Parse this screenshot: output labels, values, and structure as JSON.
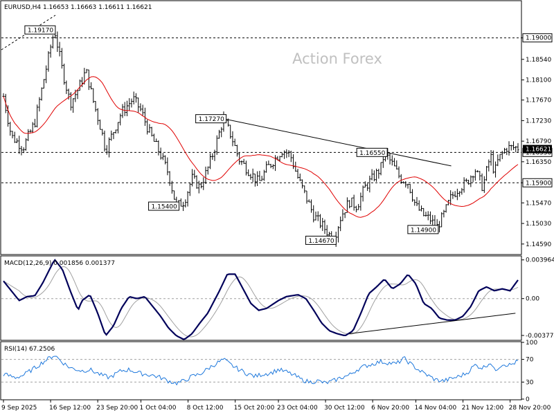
{
  "chart_data": [
    {
      "type": "ohlc",
      "pane": "price",
      "header": "EURUSD,H4  1.16653 1.16663 1.16611 1.16621",
      "watermark": "Action Forex",
      "ylim": [
        1.1438,
        1.1978
      ],
      "y_ticks": [
        1.1459,
        1.1503,
        1.1547,
        1.159,
        1.1635,
        1.1679,
        1.1723,
        1.1767,
        1.181,
        1.1854,
        1.19
      ],
      "y_tick_labels": [
        "1.14590",
        "1.15030",
        "1.15470",
        "1.15900",
        "1.16350",
        "1.16790",
        "1.17230",
        "1.17670",
        "1.18100",
        "1.18540",
        "1.19000"
      ],
      "horizontal_levels": [
        {
          "value": 1.19,
          "label": "1.19000",
          "style": "dashed",
          "highlight": true
        },
        {
          "value": 1.1655,
          "label": "1.16550",
          "style": "dashed",
          "highlight": true
        },
        {
          "value": 1.159,
          "label": "1.15900",
          "style": "dashed",
          "highlight": true
        }
      ],
      "current_price": {
        "value": 1.16621,
        "label": "1.16621"
      },
      "annotations": [
        {
          "label": "1.19170",
          "value": 1.1917,
          "date_index": 12.5
        },
        {
          "label": "1.17270",
          "value": 1.1727,
          "date_index": 56
        },
        {
          "label": "1.15400",
          "value": 1.154,
          "date_index": 44
        },
        {
          "label": "1.14670",
          "value": 1.1467,
          "date_index": 84
        },
        {
          "label": "1.16550",
          "value": 1.1655,
          "date_index": 97
        },
        {
          "label": "1.14900",
          "value": 1.149,
          "date_index": 110
        }
      ],
      "trendline": {
        "from": {
          "date_index": 56,
          "value": 1.1727
        },
        "to": {
          "date_index": 114,
          "value": 1.1626
        }
      },
      "moving_average_color": "#ff0000",
      "bar_color": "#000000",
      "key_points": [
        [
          0,
          1.1775
        ],
        [
          2,
          1.169
        ],
        [
          5,
          1.1665
        ],
        [
          8,
          1.172
        ],
        [
          10,
          1.18
        ],
        [
          12,
          1.188
        ],
        [
          13,
          1.1917
        ],
        [
          15,
          1.183
        ],
        [
          17,
          1.176
        ],
        [
          19,
          1.179
        ],
        [
          21,
          1.183
        ],
        [
          23,
          1.176
        ],
        [
          25,
          1.17
        ],
        [
          26,
          1.166
        ],
        [
          28,
          1.17
        ],
        [
          30,
          1.174
        ],
        [
          33,
          1.177
        ],
        [
          35,
          1.1745
        ],
        [
          37,
          1.17
        ],
        [
          40,
          1.165
        ],
        [
          42,
          1.161
        ],
        [
          44,
          1.154
        ],
        [
          46,
          1.155
        ],
        [
          48,
          1.16
        ],
        [
          50,
          1.158
        ],
        [
          52,
          1.162
        ],
        [
          54,
          1.167
        ],
        [
          56,
          1.1727
        ],
        [
          58,
          1.169
        ],
        [
          60,
          1.164
        ],
        [
          63,
          1.161
        ],
        [
          65,
          1.159
        ],
        [
          67,
          1.162
        ],
        [
          69,
          1.164
        ],
        [
          71,
          1.166
        ],
        [
          73,
          1.165
        ],
        [
          75,
          1.16
        ],
        [
          77,
          1.156
        ],
        [
          79,
          1.152
        ],
        [
          82,
          1.149
        ],
        [
          84,
          1.1467
        ],
        [
          86,
          1.152
        ],
        [
          88,
          1.155
        ],
        [
          90,
          1.154
        ],
        [
          92,
          1.158
        ],
        [
          94,
          1.16
        ],
        [
          96,
          1.162
        ],
        [
          97,
          1.1655
        ],
        [
          99,
          1.163
        ],
        [
          101,
          1.16
        ],
        [
          103,
          1.159
        ],
        [
          105,
          1.154
        ],
        [
          107,
          1.152
        ],
        [
          109,
          1.151
        ],
        [
          110,
          1.149
        ],
        [
          112,
          1.152
        ],
        [
          114,
          1.156
        ],
        [
          116,
          1.158
        ],
        [
          118,
          1.159
        ],
        [
          120,
          1.162
        ],
        [
          122,
          1.158
        ],
        [
          124,
          1.165
        ],
        [
          125,
          1.161
        ],
        [
          126,
          1.164
        ],
        [
          128,
          1.1665
        ]
      ]
    },
    {
      "type": "line",
      "pane": "macd",
      "header": "MACD(12,26,9) 0.001856 0.001377",
      "ylim": [
        -0.0042,
        0.0043
      ],
      "y_ticks": [
        0.003964,
        0.0,
        -0.003774
      ],
      "y_tick_labels": [
        "0.003964",
        "0.00",
        "-0.003774"
      ],
      "zero_line": 0.0,
      "main_color": "#00005a",
      "signal_color": "#a0a0a0",
      "trendline": {
        "from": {
          "date_index": 88,
          "value": -0.0036
        },
        "to": {
          "date_index": 130,
          "value": -0.0015
        }
      },
      "key_points": [
        [
          0,
          0.0018
        ],
        [
          2,
          0.0008
        ],
        [
          4,
          -0.0002
        ],
        [
          6,
          0.0002
        ],
        [
          8,
          0.0003
        ],
        [
          10,
          0.0016
        ],
        [
          13,
          0.004
        ],
        [
          15,
          0.003
        ],
        [
          17,
          0.0008
        ],
        [
          19,
          -0.0012
        ],
        [
          20,
          -0.0002
        ],
        [
          22,
          0.0004
        ],
        [
          24,
          -0.0015
        ],
        [
          26,
          -0.0038
        ],
        [
          28,
          -0.0028
        ],
        [
          30,
          -0.001
        ],
        [
          32,
          0.0002
        ],
        [
          34,
          0.0
        ],
        [
          36,
          0.0002
        ],
        [
          38,
          -0.0008
        ],
        [
          40,
          -0.0018
        ],
        [
          42,
          -0.003
        ],
        [
          44,
          -0.0038
        ],
        [
          46,
          -0.0042
        ],
        [
          48,
          -0.0036
        ],
        [
          50,
          -0.0025
        ],
        [
          52,
          -0.0015
        ],
        [
          55,
          0.0008
        ],
        [
          57,
          0.0025
        ],
        [
          59,
          0.0025
        ],
        [
          61,
          0.001
        ],
        [
          63,
          -0.0005
        ],
        [
          65,
          -0.0012
        ],
        [
          67,
          -0.001
        ],
        [
          70,
          -0.0002
        ],
        [
          72,
          0.0002
        ],
        [
          75,
          0.0004
        ],
        [
          77,
          0.0
        ],
        [
          79,
          -0.0012
        ],
        [
          81,
          -0.0025
        ],
        [
          83,
          -0.0033
        ],
        [
          85,
          -0.0036
        ],
        [
          87,
          -0.0038
        ],
        [
          89,
          -0.0033
        ],
        [
          91,
          -0.0015
        ],
        [
          93,
          0.0005
        ],
        [
          95,
          0.0012
        ],
        [
          97,
          0.002
        ],
        [
          99,
          0.001
        ],
        [
          101,
          0.0015
        ],
        [
          103,
          0.0025
        ],
        [
          105,
          0.0015
        ],
        [
          107,
          -0.0005
        ],
        [
          109,
          -0.001
        ],
        [
          111,
          -0.002
        ],
        [
          113,
          -0.0022
        ],
        [
          115,
          -0.0022
        ],
        [
          117,
          -0.0018
        ],
        [
          119,
          -0.0008
        ],
        [
          121,
          0.0008
        ],
        [
          123,
          0.0012
        ],
        [
          125,
          0.0008
        ],
        [
          127,
          0.001
        ],
        [
          129,
          0.0008
        ],
        [
          131,
          0.0019
        ]
      ]
    },
    {
      "type": "line",
      "pane": "rsi",
      "header": "RSI(14) 67.2506",
      "ylim": [
        0,
        100
      ],
      "y_ticks": [
        100,
        70,
        30,
        0
      ],
      "y_tick_labels": [
        "100",
        "70",
        "30",
        "0"
      ],
      "levels": [
        70,
        30
      ],
      "line_color": "#1e78dc",
      "key_points": [
        [
          0,
          44
        ],
        [
          3,
          38
        ],
        [
          5,
          42
        ],
        [
          8,
          55
        ],
        [
          10,
          65
        ],
        [
          13,
          78
        ],
        [
          15,
          65
        ],
        [
          17,
          55
        ],
        [
          20,
          50
        ],
        [
          22,
          52
        ],
        [
          25,
          42
        ],
        [
          27,
          38
        ],
        [
          30,
          50
        ],
        [
          32,
          52
        ],
        [
          35,
          45
        ],
        [
          38,
          42
        ],
        [
          40,
          38
        ],
        [
          42,
          32
        ],
        [
          44,
          28
        ],
        [
          46,
          32
        ],
        [
          48,
          40
        ],
        [
          50,
          44
        ],
        [
          53,
          58
        ],
        [
          56,
          70
        ],
        [
          58,
          60
        ],
        [
          60,
          52
        ],
        [
          62,
          45
        ],
        [
          64,
          40
        ],
        [
          66,
          44
        ],
        [
          68,
          46
        ],
        [
          70,
          52
        ],
        [
          72,
          48
        ],
        [
          74,
          42
        ],
        [
          76,
          34
        ],
        [
          78,
          30
        ],
        [
          80,
          32
        ],
        [
          82,
          28
        ],
        [
          84,
          32
        ],
        [
          86,
          38
        ],
        [
          88,
          42
        ],
        [
          90,
          52
        ],
        [
          92,
          58
        ],
        [
          94,
          62
        ],
        [
          96,
          66
        ],
        [
          98,
          64
        ],
        [
          100,
          62
        ],
        [
          102,
          72
        ],
        [
          104,
          60
        ],
        [
          106,
          50
        ],
        [
          108,
          42
        ],
        [
          110,
          34
        ],
        [
          112,
          32
        ],
        [
          114,
          36
        ],
        [
          116,
          40
        ],
        [
          118,
          46
        ],
        [
          120,
          60
        ],
        [
          122,
          55
        ],
        [
          124,
          65
        ],
        [
          125,
          50
        ],
        [
          127,
          62
        ],
        [
          129,
          60
        ],
        [
          131,
          67
        ]
      ]
    }
  ],
  "x_axis": {
    "labels": [
      "9 Sep 2025",
      "16 Sep 12:00",
      "23 Sep 20:00",
      "1 Oct 04:00",
      "8 Oct 12:00",
      "15 Oct 20:00",
      "23 Oct 04:00",
      "30 Oct 12:00",
      "6 Nov 20:00",
      "14 Nov 04:00",
      "21 Nov 12:00",
      "28 Nov 20:00"
    ],
    "label_date_index": [
      0,
      12,
      24,
      35,
      47,
      59,
      70,
      82,
      94,
      105,
      117,
      129
    ]
  }
}
